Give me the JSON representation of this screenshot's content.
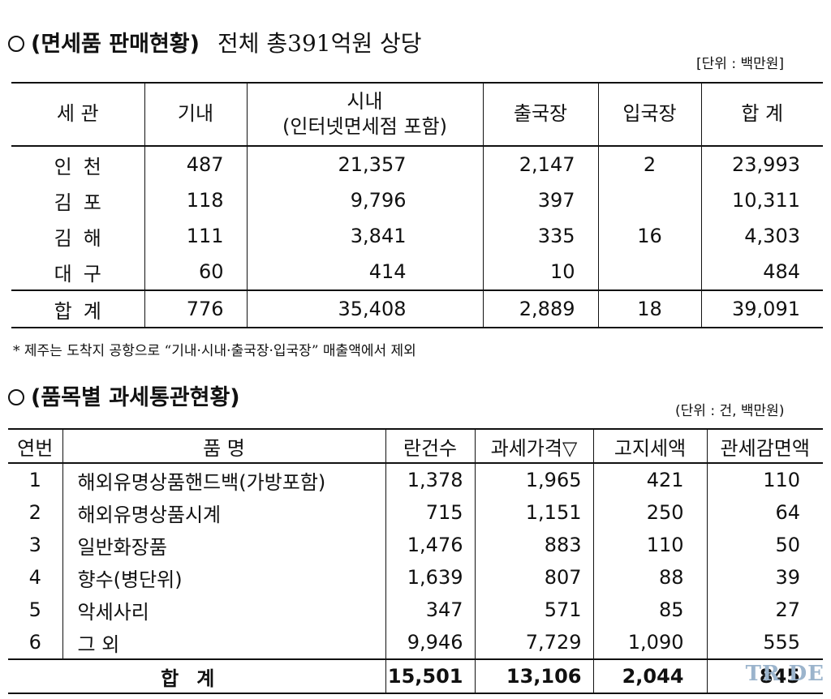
{
  "section1": {
    "title": "(면세품 판매현황)",
    "subtitle": "전체 총391억원 상당",
    "unit": "[단위 : 백만원]",
    "headers": [
      "세 관",
      "기내",
      "시내",
      "(인터넷면세점 포함)",
      "출국장",
      "입국장",
      "합 계"
    ],
    "rows": [
      {
        "label": "인천",
        "inflight": "487",
        "downtown": "21,357",
        "departure": "2,147",
        "arrival": "2",
        "total": "23,993"
      },
      {
        "label": "김포",
        "inflight": "118",
        "downtown": "9,796",
        "departure": "397",
        "arrival": "",
        "total": "10,311"
      },
      {
        "label": "김해",
        "inflight": "111",
        "downtown": "3,841",
        "departure": "335",
        "arrival": "16",
        "total": "4,303"
      },
      {
        "label": "대구",
        "inflight": "60",
        "downtown": "414",
        "departure": "10",
        "arrival": "",
        "total": "484"
      }
    ],
    "total": {
      "label": "합계",
      "inflight": "776",
      "downtown": "35,408",
      "departure": "2,889",
      "arrival": "18",
      "total": "39,091"
    },
    "note": "* 제주는 도착지 공항으로 “기내·시내·출국장·입국장” 매출액에서 제외"
  },
  "section2": {
    "title": "(품목별 과세통관현황)",
    "unit": "(단위 : 건, 백만원)",
    "headers": [
      "연번",
      "품 명",
      "란건수",
      "과세가격▽",
      "고지세액",
      "관세감면액"
    ],
    "rows": [
      {
        "no": "1",
        "name": "해외유명상품핸드백(가방포함)",
        "count": "1,378",
        "price": "1,965",
        "tax": "421",
        "reduction": "110"
      },
      {
        "no": "2",
        "name": "해외유명상품시계",
        "count": "715",
        "price": "1,151",
        "tax": "250",
        "reduction": "64"
      },
      {
        "no": "3",
        "name": "일반화장품",
        "count": "1,476",
        "price": "883",
        "tax": "110",
        "reduction": "50"
      },
      {
        "no": "4",
        "name": "향수(병단위)",
        "count": "1,639",
        "price": "807",
        "tax": "88",
        "reduction": "39"
      },
      {
        "no": "5",
        "name": "악세사리",
        "count": "347",
        "price": "571",
        "tax": "85",
        "reduction": "27"
      },
      {
        "no": "6",
        "name": "그 외",
        "count": "9,946",
        "price": "7,729",
        "tax": "1,090",
        "reduction": "555"
      }
    ],
    "total": {
      "label": "합계",
      "count": "15,501",
      "price": "13,106",
      "tax": "2,044",
      "reduction": "845"
    }
  },
  "watermark": "TR DE"
}
